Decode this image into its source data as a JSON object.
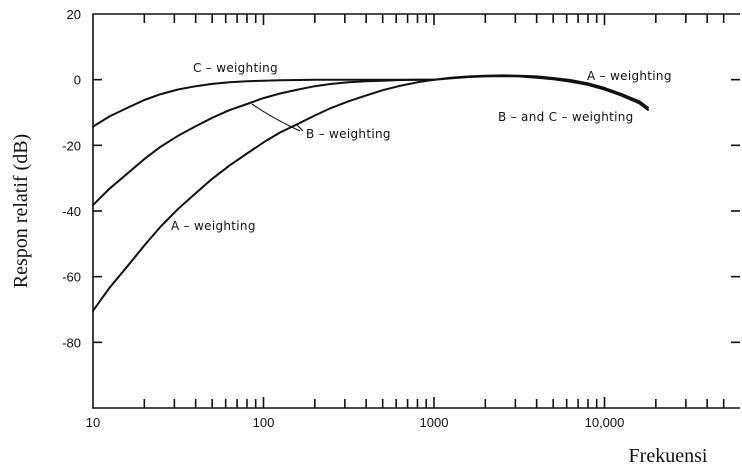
{
  "chart_data": {
    "type": "line",
    "title": "",
    "xlabel": "Frekuensi",
    "ylabel": "Respon relatif (dB)",
    "xscale": "log",
    "xlim": [
      10,
      50000
    ],
    "ylim": [
      -100,
      20
    ],
    "x_tick_labels": [
      {
        "value": 10,
        "label": "10"
      },
      {
        "value": 100,
        "label": "100"
      },
      {
        "value": 1000,
        "label": "1000"
      },
      {
        "value": 10000,
        "label": "10,000"
      }
    ],
    "y_tick_labels": [
      {
        "value": 20,
        "label": "20"
      },
      {
        "value": 0,
        "label": "0"
      },
      {
        "value": -20,
        "label": "-20"
      },
      {
        "value": -40,
        "label": "-40"
      },
      {
        "value": -60,
        "label": "-60"
      },
      {
        "value": -80,
        "label": "-80"
      }
    ],
    "series": [
      {
        "name": "A – weighting",
        "x": [
          10,
          12.5,
          16,
          20,
          25,
          31.5,
          40,
          50,
          63,
          80,
          100,
          125,
          160,
          200,
          250,
          315,
          400,
          500,
          630,
          800,
          1000,
          1250,
          1600,
          2000,
          2500,
          3150,
          4000,
          5000,
          6300,
          8000,
          10000,
          12500,
          16000,
          18000
        ],
        "y": [
          -70.4,
          -63.4,
          -56.7,
          -50.5,
          -44.7,
          -39.4,
          -34.6,
          -30.2,
          -26.2,
          -22.5,
          -19.1,
          -16.1,
          -13.4,
          -10.9,
          -8.6,
          -6.6,
          -4.8,
          -3.2,
          -1.9,
          -0.8,
          0,
          0.6,
          1.0,
          1.2,
          1.3,
          1.2,
          1.0,
          0.5,
          -0.1,
          -1.1,
          -2.5,
          -4.3,
          -6.6,
          -8.5
        ]
      },
      {
        "name": "B – weighting",
        "x": [
          10,
          12.5,
          16,
          20,
          25,
          31.5,
          40,
          50,
          63,
          80,
          100,
          125,
          160,
          200,
          250,
          315,
          400,
          500,
          630,
          800,
          1000
        ],
        "y": [
          -38.2,
          -33.2,
          -28.5,
          -24.2,
          -20.4,
          -17.1,
          -14.2,
          -11.6,
          -9.3,
          -7.4,
          -5.6,
          -4.2,
          -3.0,
          -2.0,
          -1.3,
          -0.8,
          -0.5,
          -0.3,
          -0.1,
          0,
          0
        ]
      },
      {
        "name": "C – weighting",
        "x": [
          10,
          12.5,
          16,
          20,
          25,
          31.5,
          40,
          50,
          63,
          80,
          100,
          125,
          160,
          200,
          250,
          315,
          400,
          500,
          630,
          800,
          1000
        ],
        "y": [
          -14.3,
          -11.2,
          -8.5,
          -6.2,
          -4.4,
          -3.0,
          -2.0,
          -1.3,
          -0.8,
          -0.5,
          -0.3,
          -0.2,
          -0.1,
          0,
          0,
          0,
          0,
          0,
          0,
          0,
          0
        ]
      },
      {
        "name": "B – and C – weighting",
        "x": [
          1000,
          1250,
          1600,
          2000,
          2500,
          3150,
          4000,
          5000,
          6300,
          8000,
          10000,
          12500,
          16000,
          18000
        ],
        "y": [
          0,
          0.4,
          0.8,
          1.0,
          1.1,
          1.0,
          0.6,
          0.1,
          -0.6,
          -1.6,
          -3.0,
          -4.8,
          -7.2,
          -9.2
        ]
      }
    ],
    "annotations": [
      {
        "text": "C – weighting"
      },
      {
        "text": "B – weighting"
      },
      {
        "text": "A – weighting"
      },
      {
        "text": "A – weighting"
      },
      {
        "text": "B – and C – weighting"
      }
    ],
    "grid": false,
    "legend": "none (curves labelled directly)"
  }
}
